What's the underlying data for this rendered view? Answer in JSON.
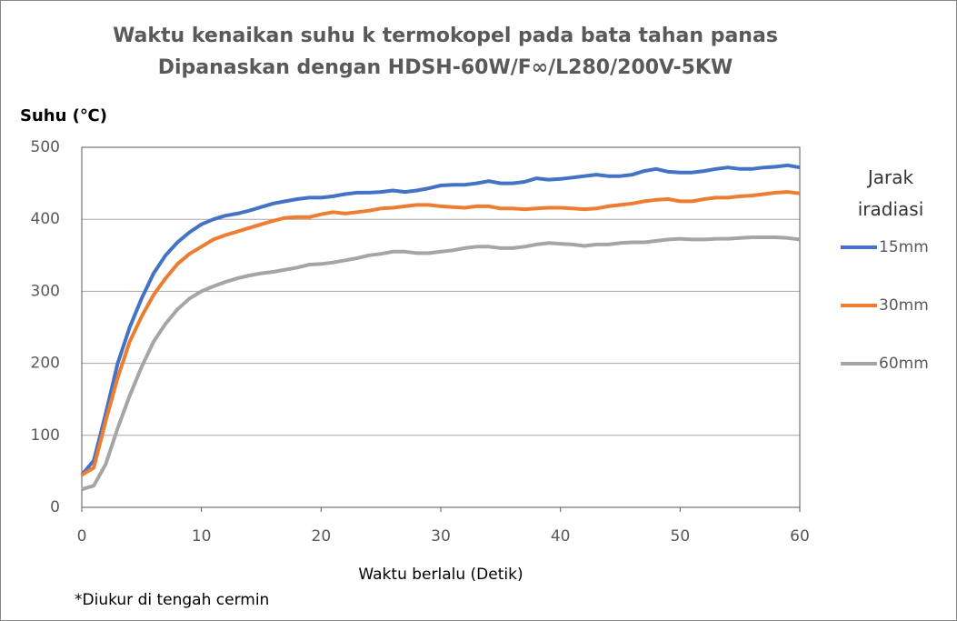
{
  "chart_data": {
    "type": "line",
    "title": "Waktu kenaikan suhu k termokopel pada bata tahan panas",
    "subtitle": "Dipanaskan dengan HDSH-60W/F∞/L280/200V-5KW",
    "y_label": "Suhu (℃)",
    "x_label": "Waktu berlalu (Detik)",
    "legend_title": "Jarak iradiasi",
    "annotation": "*Diukur di tengah cermin",
    "x": [
      0,
      1,
      2,
      3,
      4,
      5,
      6,
      7,
      8,
      9,
      10,
      11,
      12,
      13,
      14,
      15,
      16,
      17,
      18,
      19,
      20,
      21,
      22,
      23,
      24,
      25,
      26,
      27,
      28,
      29,
      30,
      31,
      32,
      33,
      34,
      35,
      36,
      37,
      38,
      39,
      40,
      41,
      42,
      43,
      44,
      45,
      46,
      47,
      48,
      49,
      50,
      51,
      52,
      53,
      54,
      55,
      56,
      57,
      58,
      59,
      60
    ],
    "series": [
      {
        "name": "15mm",
        "color": "#4472c4",
        "values": [
          45,
          65,
          130,
          200,
          250,
          290,
          325,
          350,
          368,
          382,
          393,
          400,
          405,
          408,
          412,
          417,
          422,
          425,
          428,
          430,
          430,
          432,
          435,
          437,
          437,
          438,
          440,
          438,
          440,
          443,
          447,
          448,
          448,
          450,
          453,
          450,
          450,
          452,
          457,
          455,
          456,
          458,
          460,
          462,
          460,
          460,
          462,
          467,
          470,
          466,
          465,
          465,
          467,
          470,
          472,
          470,
          470,
          472,
          473,
          475,
          472
        ]
      },
      {
        "name": "30mm",
        "color": "#ed7d31",
        "values": [
          45,
          55,
          120,
          180,
          230,
          265,
          295,
          318,
          338,
          352,
          362,
          372,
          378,
          383,
          388,
          393,
          398,
          402,
          403,
          403,
          407,
          410,
          408,
          410,
          412,
          415,
          416,
          418,
          420,
          420,
          418,
          417,
          416,
          418,
          418,
          415,
          415,
          414,
          415,
          416,
          416,
          415,
          414,
          415,
          418,
          420,
          422,
          425,
          427,
          428,
          425,
          425,
          428,
          430,
          430,
          432,
          433,
          435,
          437,
          438,
          436
        ]
      },
      {
        "name": "60mm",
        "color": "#a5a5a5",
        "values": [
          25,
          30,
          60,
          110,
          155,
          195,
          230,
          255,
          275,
          290,
          300,
          307,
          313,
          318,
          322,
          325,
          327,
          330,
          333,
          337,
          338,
          340,
          343,
          346,
          350,
          352,
          355,
          355,
          353,
          353,
          355,
          357,
          360,
          362,
          362,
          360,
          360,
          362,
          365,
          367,
          366,
          365,
          363,
          365,
          365,
          367,
          368,
          368,
          370,
          372,
          373,
          372,
          372,
          373,
          373,
          374,
          375,
          375,
          375,
          374,
          372
        ]
      }
    ],
    "xlim": [
      0,
      60
    ],
    "xticks": [
      0,
      10,
      20,
      30,
      40,
      50,
      60
    ],
    "ylim": [
      0,
      500
    ],
    "yticks": [
      0,
      100,
      200,
      300,
      400,
      500
    ],
    "grid": true
  }
}
